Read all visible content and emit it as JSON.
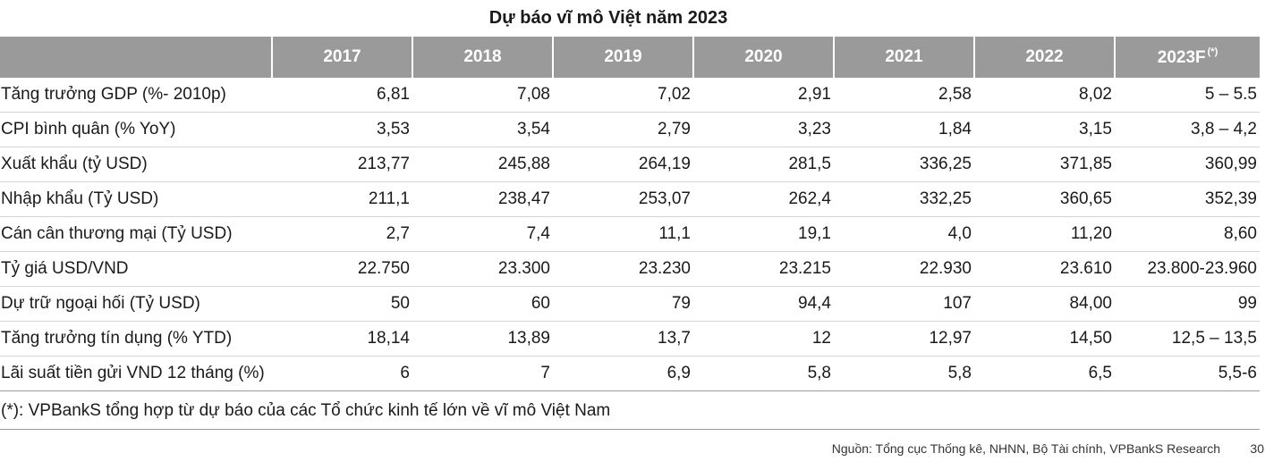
{
  "title": "Dự báo vĩ mô Việt năm 2023",
  "table": {
    "years": [
      "2017",
      "2018",
      "2019",
      "2020",
      "2021",
      "2022",
      "2023F"
    ],
    "forecast_marker": "(*)",
    "rows": [
      {
        "label": "Tăng trưởng GDP (%- 2010p)",
        "values": [
          "6,81",
          "7,08",
          "7,02",
          "2,91",
          "2,58",
          "8,02",
          "5 – 5.5"
        ]
      },
      {
        "label": "CPI bình quân (% YoY)",
        "values": [
          "3,53",
          "3,54",
          "2,79",
          "3,23",
          "1,84",
          "3,15",
          "3,8 – 4,2"
        ]
      },
      {
        "label": "Xuất khẩu (tỷ USD)",
        "values": [
          "213,77",
          "245,88",
          "264,19",
          "281,5",
          "336,25",
          "371,85",
          "360,99"
        ]
      },
      {
        "label": "Nhập khẩu (Tỷ USD)",
        "values": [
          "211,1",
          "238,47",
          "253,07",
          "262,4",
          "332,25",
          "360,65",
          "352,39"
        ]
      },
      {
        "label": "Cán cân thương mại (Tỷ USD)",
        "values": [
          "2,7",
          "7,4",
          "11,1",
          "19,1",
          "4,0",
          "11,20",
          "8,60"
        ]
      },
      {
        "label": "Tỷ giá USD/VND",
        "values": [
          "22.750",
          "23.300",
          "23.230",
          "23.215",
          "22.930",
          "23.610",
          "23.800-23.960"
        ]
      },
      {
        "label": "Dự trữ ngoại hối (Tỷ USD)",
        "values": [
          "50",
          "60",
          "79",
          "94,4",
          "107",
          "84,00",
          "99"
        ]
      },
      {
        "label": "Tăng trưởng tín dụng (% YTD)",
        "values": [
          "18,14",
          "13,89",
          "13,7",
          "12",
          "12,97",
          "14,50",
          "12,5 – 13,5"
        ]
      },
      {
        "label": "Lãi suất tiền gửi VND 12 tháng (%)",
        "values": [
          "6",
          "7",
          "6,9",
          "5,8",
          "5,8",
          "6,5",
          "5,5-6"
        ]
      }
    ]
  },
  "note": "(*): VPBankS tổng hợp từ dự báo của các Tổ chức kinh tế lớn về vĩ mô Việt Nam",
  "source": "Nguồn: Tổng cục Thống kê, NHNN, Bộ Tài chính, VPBankS Research",
  "page_number": "30",
  "colors": {
    "header_bg": "#9a9a9a",
    "header_text": "#ffffff",
    "body_text": "#1a1a1a",
    "row_divider": "#d6d6d6"
  }
}
